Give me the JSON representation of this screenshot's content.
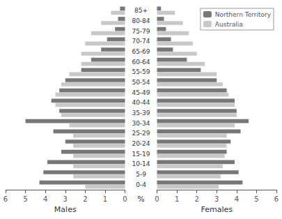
{
  "chart_data": [
    {
      "type": "bar",
      "orientation": "horizontal",
      "xlabel": "Males",
      "categories": [
        "0-4",
        "5-9",
        "10-14",
        "15-19",
        "20-24",
        "25-29",
        "30-34",
        "35-39",
        "40-44",
        "45-49",
        "50-54",
        "55-59",
        "60-64",
        "65-69",
        "70-74",
        "75-79",
        "80-84",
        "85+"
      ],
      "series": [
        {
          "name": "Northern Territory",
          "color": "#777777",
          "values": [
            4.3,
            4.1,
            3.9,
            3.2,
            3.0,
            3.6,
            5.0,
            3.3,
            3.7,
            3.3,
            3.0,
            2.2,
            1.7,
            1.2,
            0.9,
            0.5,
            0.35,
            0.25
          ]
        },
        {
          "name": "Australia",
          "color": "#c8c8c8",
          "values": [
            2.0,
            2.6,
            2.6,
            2.6,
            2.6,
            2.6,
            2.8,
            3.2,
            3.5,
            3.5,
            3.2,
            2.8,
            2.2,
            2.2,
            2.0,
            1.7,
            1.2,
            0.7
          ]
        }
      ],
      "xlim": [
        6,
        0
      ],
      "xticks": [
        0,
        1,
        2,
        3,
        4,
        5,
        6
      ],
      "grid": false,
      "annotation": "%"
    },
    {
      "type": "bar",
      "orientation": "horizontal",
      "xlabel": "Females",
      "categories": [
        "0-4",
        "5-9",
        "10-14",
        "15-19",
        "20-24",
        "25-29",
        "30-34",
        "35-39",
        "40-44",
        "45-49",
        "50-54",
        "55-59",
        "60-64",
        "65-69",
        "70-74",
        "75-79",
        "80-84",
        "85+"
      ],
      "series": [
        {
          "name": "Northern Territory",
          "color": "#777777",
          "values": [
            4.3,
            4.1,
            3.9,
            3.5,
            3.7,
            4.2,
            4.6,
            4.0,
            3.9,
            3.5,
            3.0,
            2.2,
            1.5,
            0.8,
            0.7,
            0.45,
            0.35,
            0.2
          ]
        },
        {
          "name": "Australia",
          "color": "#c8c8c8",
          "values": [
            3.1,
            3.2,
            3.3,
            3.4,
            3.5,
            3.5,
            3.9,
            4.0,
            3.9,
            3.6,
            3.3,
            3.0,
            2.4,
            2.0,
            1.8,
            1.6,
            1.3,
            0.9
          ]
        }
      ],
      "xlim": [
        0,
        6
      ],
      "xticks": [
        0,
        1,
        2,
        3,
        4,
        5,
        6
      ],
      "grid": false,
      "legend": "upper right"
    }
  ]
}
